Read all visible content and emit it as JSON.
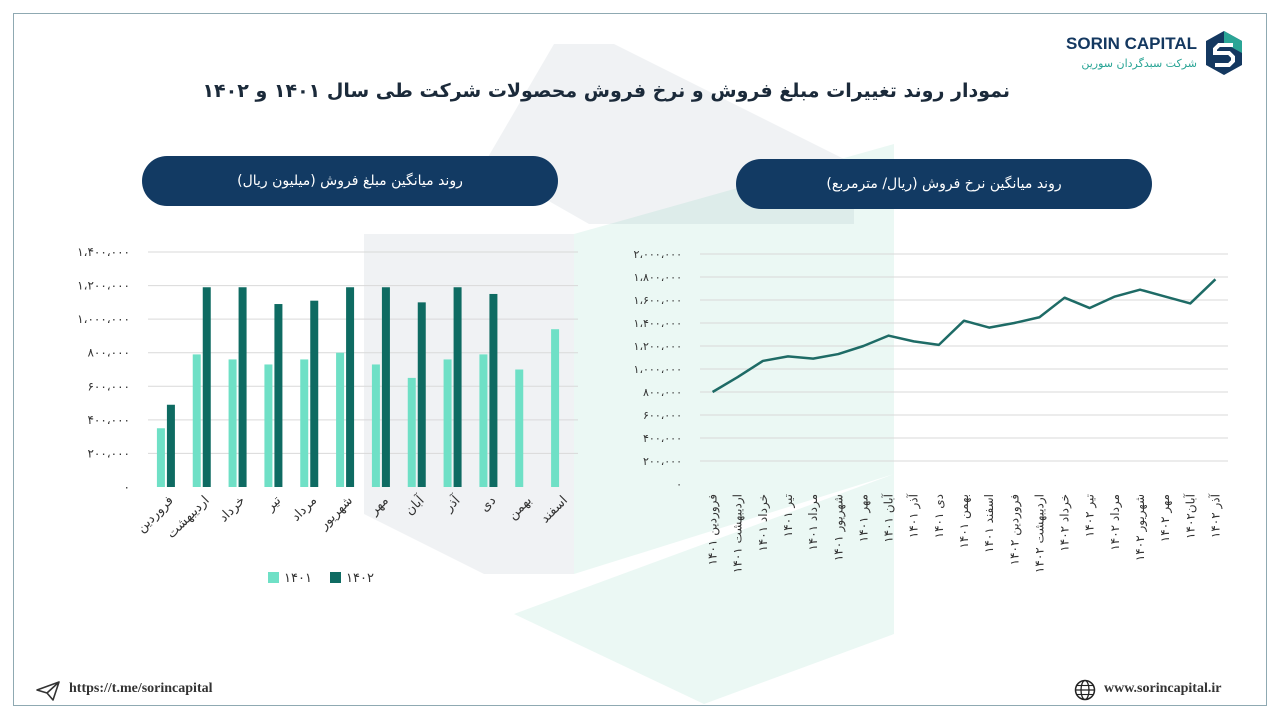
{
  "title": "نمودار روند تغییرات مبلغ فروش و نرخ فروش محصولات شرکت طی سال  ۱۴۰۱ و ۱۴۰۲",
  "logo": {
    "name": "SORIN CAPITAL",
    "subtitle": "شرکت سبدگردان سورین"
  },
  "colors": {
    "navy": "#123a63",
    "light_teal": "#6fe0c6",
    "dark_teal": "#0e6b62",
    "line": "#1e6b66"
  },
  "footer": {
    "telegram_url": "https://t.me/sorincapital",
    "website": "www.sorincapital.ir",
    "telegram_icon": "paper-plane-icon",
    "website_icon": "globe-icon"
  },
  "chart_data": [
    {
      "type": "bar",
      "title": "روند میانگین مبلغ فروش (میلیون ریال)",
      "categories": [
        "فروردین",
        "اردیبهشت",
        "خرداد",
        "تیر",
        "مرداد",
        "شهریور",
        "مهر",
        "آبان",
        "آذر",
        "دی",
        "بهمن",
        "اسفند"
      ],
      "series": [
        {
          "name": "۱۴۰۱",
          "values": [
            350000,
            790000,
            760000,
            730000,
            760000,
            800000,
            730000,
            650000,
            760000,
            790000,
            700000,
            940000
          ]
        },
        {
          "name": "۱۴۰۲",
          "values": [
            490000,
            1190000,
            1190000,
            1090000,
            1110000,
            1190000,
            1190000,
            1100000,
            1190000,
            1150000,
            null,
            null
          ]
        }
      ],
      "ylim": [
        0,
        1400000
      ],
      "yticks": [
        "۰",
        "۲۰۰،۰۰۰",
        "۴۰۰،۰۰۰",
        "۶۰۰،۰۰۰",
        "۸۰۰،۰۰۰",
        "۱،۰۰۰،۰۰۰",
        "۱،۲۰۰،۰۰۰",
        "۱،۴۰۰،۰۰۰"
      ],
      "grid": true,
      "legend": "bottom"
    },
    {
      "type": "line",
      "title": "روند میانگین نرخ فروش (ریال/ مترمربع)",
      "categories": [
        "فروردین ۱۴۰۱",
        "اردیبهشت ۱۴۰۱",
        "خرداد ۱۴۰۱",
        "تیر ۱۴۰۱",
        "مرداد ۱۴۰۱",
        "شهریور ۱۴۰۱",
        "مهر ۱۴۰۱",
        "آبان ۱۴۰۱",
        "آذر ۱۴۰۱",
        "دی ۱۴۰۱",
        "بهمن ۱۴۰۱",
        "اسفند ۱۴۰۱",
        "فروردین ۱۴۰۲",
        "اردیبهشت ۱۴۰۲",
        "خرداد ۱۴۰۲",
        "تیر ۱۴۰۲",
        "مرداد ۱۴۰۲",
        "شهریور ۱۴۰۲",
        "مهر ۱۴۰۲",
        "آبان۱۴۰۲",
        "آذر ۱۴۰۲"
      ],
      "values": [
        800000,
        930000,
        1070000,
        1110000,
        1090000,
        1130000,
        1200000,
        1290000,
        1240000,
        1210000,
        1420000,
        1360000,
        1400000,
        1450000,
        1620000,
        1530000,
        1630000,
        1690000,
        1630000,
        1570000,
        1780000
      ],
      "ylim": [
        0,
        2000000
      ],
      "yticks": [
        "۰",
        "۲۰۰،۰۰۰",
        "۴۰۰،۰۰۰",
        "۶۰۰،۰۰۰",
        "۸۰۰،۰۰۰",
        "۱،۰۰۰،۰۰۰",
        "۱،۲۰۰،۰۰۰",
        "۱،۴۰۰،۰۰۰",
        "۱،۶۰۰،۰۰۰",
        "۱،۸۰۰،۰۰۰",
        "۲،۰۰۰،۰۰۰"
      ],
      "grid": true
    }
  ]
}
